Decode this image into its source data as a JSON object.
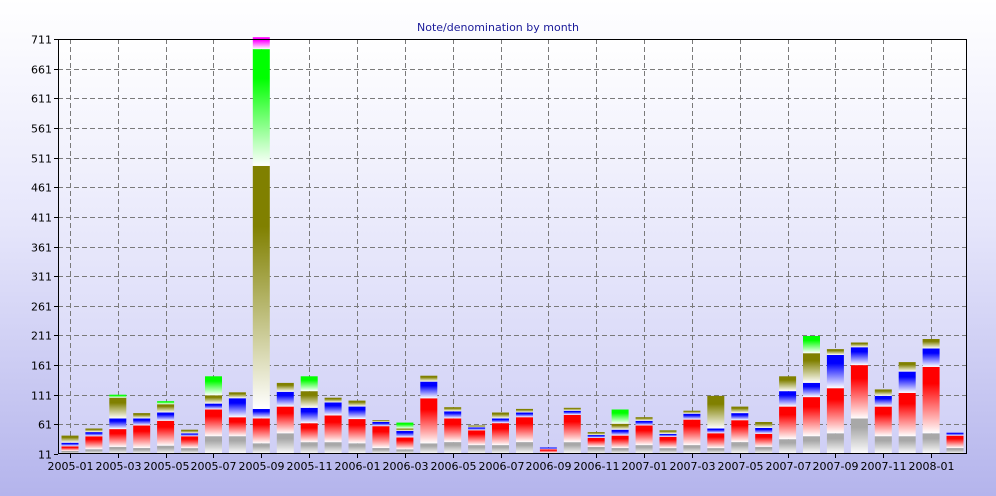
{
  "chart_data": {
    "type": "bar",
    "stacked": true,
    "title": "Note/denomination by month",
    "xlabel": "",
    "ylabel": "",
    "ylim": [
      11,
      711
    ],
    "yticks": [
      11,
      61,
      111,
      161,
      211,
      261,
      311,
      361,
      411,
      461,
      511,
      561,
      611,
      661,
      711
    ],
    "grid": true,
    "legend": "none",
    "categories": [
      "2005-01",
      "2005-02",
      "2005-03",
      "2005-04",
      "2005-05",
      "2005-06",
      "2005-07",
      "2005-08",
      "2005-09",
      "2005-10",
      "2005-11",
      "2005-12",
      "2006-01",
      "2006-02",
      "2006-03",
      "2006-04",
      "2006-05",
      "2006-06",
      "2006-07",
      "2006-08",
      "2006-09",
      "2006-10",
      "2006-11",
      "2006-12",
      "2007-01",
      "2007-02",
      "2007-03",
      "2007-04",
      "2007-05",
      "2007-06",
      "2007-07",
      "2007-08",
      "2007-09",
      "2007-10",
      "2007-11",
      "2007-12",
      "2008-01",
      "2008-02"
    ],
    "xtick_labels": [
      "2005-01",
      "2005-03",
      "2005-05",
      "2005-07",
      "2005-09",
      "2005-11",
      "2006-01",
      "2006-03",
      "2006-05",
      "2006-07",
      "2006-09",
      "2006-11",
      "2007-01",
      "2007-03",
      "2007-05",
      "2007-07",
      "2007-09",
      "2007-11",
      "2008-01"
    ],
    "series": [
      {
        "color": "#a8a8a8",
        "values": [
          5,
          8,
          12,
          10,
          14,
          10,
          30,
          30,
          18,
          35,
          20,
          20,
          18,
          10,
          8,
          18,
          20,
          15,
          15,
          20,
          2,
          20,
          12,
          10,
          15,
          10,
          15,
          10,
          20,
          12,
          25,
          30,
          35,
          60,
          30,
          30,
          35,
          10
        ]
      },
      {
        "color": "#ff0000",
        "values": [
          8,
          22,
          30,
          38,
          42,
          20,
          45,
          32,
          42,
          45,
          32,
          45,
          41,
          37,
          20,
          76,
          40,
          25,
          37,
          42,
          6,
          46,
          15,
          21,
          33,
          19,
          43,
          25,
          37,
          22,
          55,
          66,
          76,
          90,
          50,
          73,
          112,
          21
        ]
      },
      {
        "color": "#0000ff",
        "values": [
          6,
          7,
          18,
          12,
          14,
          5,
          10,
          32,
          16,
          25,
          26,
          22,
          21,
          7,
          11,
          28,
          12,
          5,
          8,
          8,
          3,
          7,
          5,
          10,
          8,
          5,
          10,
          8,
          12,
          10,
          26,
          24,
          56,
          30,
          18,
          36,
          31,
          5
        ]
      },
      {
        "color": "#808000",
        "values": [
          12,
          6,
          35,
          9,
          14,
          6,
          14,
          10,
          410,
          15,
          28,
          8,
          10,
          3,
          4,
          10,
          7,
          3,
          10,
          6,
          0,
          5,
          5,
          10,
          6,
          6,
          5,
          55,
          11,
          10,
          25,
          50,
          10,
          8,
          11,
          16,
          16,
          0
        ]
      },
      {
        "color": "#00ff00",
        "values": [
          0,
          0,
          5,
          0,
          5,
          0,
          32,
          0,
          197,
          0,
          25,
          0,
          0,
          0,
          10,
          0,
          0,
          0,
          0,
          0,
          0,
          0,
          0,
          24,
          0,
          0,
          0,
          0,
          0,
          0,
          0,
          29,
          0,
          0,
          0,
          0,
          0,
          0
        ]
      },
      {
        "color": "#ff00ff",
        "values": [
          0,
          0,
          0,
          0,
          0,
          0,
          0,
          0,
          20,
          0,
          0,
          0,
          0,
          0,
          0,
          0,
          0,
          0,
          0,
          0,
          0,
          0,
          0,
          0,
          0,
          0,
          0,
          0,
          0,
          0,
          0,
          0,
          0,
          0,
          0,
          0,
          0,
          0
        ]
      }
    ]
  }
}
